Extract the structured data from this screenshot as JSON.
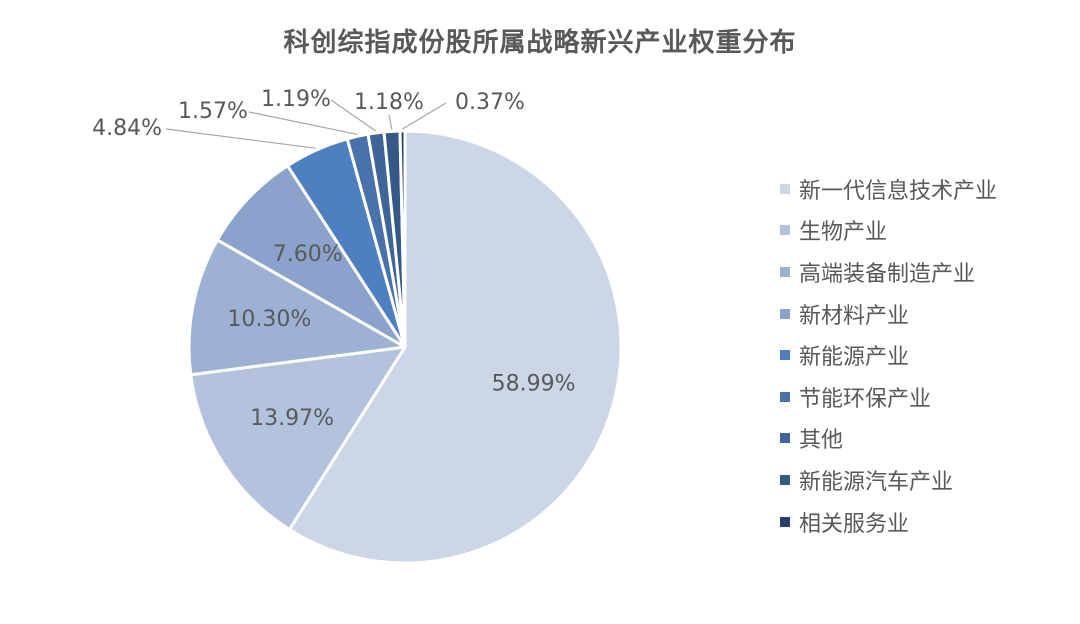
{
  "chart_data": {
    "type": "pie",
    "title": "科创综指成份股所属战略新兴产业权重分布",
    "categories": [
      "新一代信息技术产业",
      "生物产业",
      "高端装备制造产业",
      "新材料产业",
      "新能源产业",
      "节能环保产业",
      "其他",
      "新能源汽车产业",
      "相关服务业"
    ],
    "values": [
      58.99,
      13.97,
      10.3,
      7.6,
      4.84,
      1.57,
      1.19,
      1.18,
      0.37
    ],
    "data_labels": [
      "58.99%",
      "13.97%",
      "10.30%",
      "7.60%",
      "4.84%",
      "1.57%",
      "1.19%",
      "1.18%",
      "0.37%"
    ],
    "colors": [
      "#cdd6e6",
      "#b3c3de",
      "#9cb1d4",
      "#8aa2cc",
      "#4e7fc0",
      "#4a72aa",
      "#3f6497",
      "#355886",
      "#27416a"
    ],
    "legend_position": "right",
    "start_angle": "12 o'clock, clockwise"
  }
}
